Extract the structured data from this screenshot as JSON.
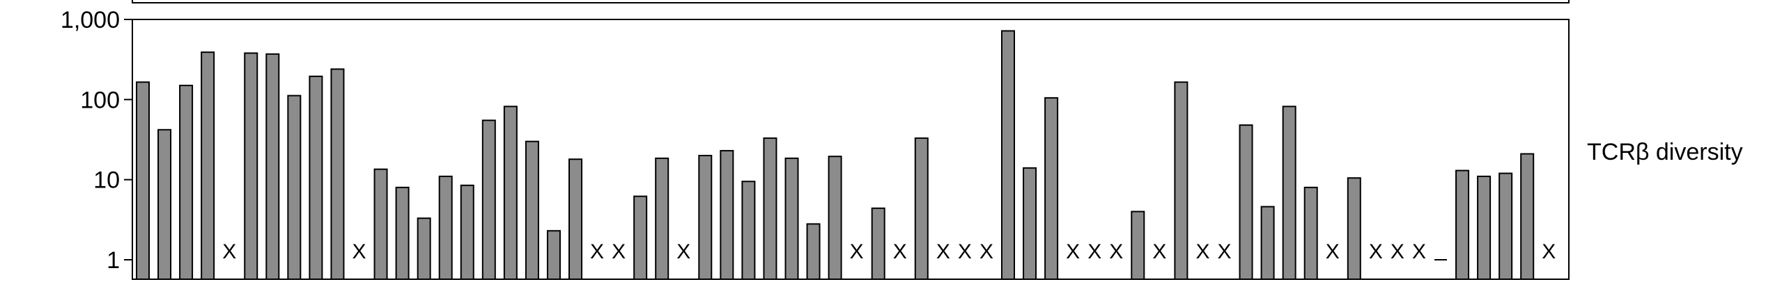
{
  "chart_data": {
    "type": "bar",
    "ylabel": "TCRβ diversity",
    "yscale": "log",
    "ylim": [
      1,
      1000
    ],
    "yticks": [
      1,
      10,
      100,
      1000
    ],
    "ytick_labels": [
      "1",
      "10",
      "100",
      "1,000"
    ],
    "missing_marker": "X",
    "bar_color": "#8c8c8c",
    "values": [
      165,
      42,
      150,
      390,
      null,
      380,
      370,
      112,
      195,
      240,
      null,
      13.5,
      8,
      3.3,
      11,
      8.5,
      55,
      82,
      30,
      2.3,
      18,
      null,
      null,
      6.2,
      18.5,
      null,
      20,
      23,
      9.5,
      33,
      18.5,
      2.8,
      19.5,
      null,
      4.4,
      null,
      33,
      null,
      null,
      null,
      720,
      14,
      105,
      null,
      null,
      null,
      4,
      null,
      165,
      null,
      null,
      48,
      4.6,
      82,
      8,
      null,
      10.5,
      null,
      null,
      null,
      1,
      13,
      11,
      12,
      21,
      null
    ]
  }
}
